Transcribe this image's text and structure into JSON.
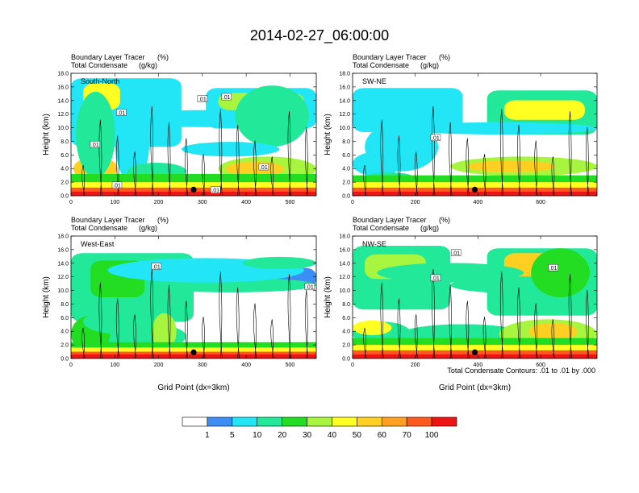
{
  "figure": {
    "title": "2014-02-27_06:00:00",
    "footnote": "Total Condensate Contours: .01 to .01 by .000"
  },
  "chart_data": [
    {
      "type": "heatmap",
      "label": "South-North",
      "subtitle_left_1": "Boundary Layer Tracer",
      "subtitle_unit_1": "(%)",
      "subtitle_left_2": "Total Condensate",
      "subtitle_unit_2": "(g/kg)",
      "xlabel": "",
      "ylabel": "Height (km)",
      "xlim": [
        0,
        560
      ],
      "ylim": [
        0,
        18
      ],
      "xticks": [
        "0",
        "100",
        "200",
        "300",
        "400",
        "500"
      ],
      "xtick_values": [
        0,
        100,
        200,
        300,
        400,
        500
      ],
      "yticks": [
        "0.0",
        "2.0",
        "4.0",
        "6.0",
        "8.0",
        "10.0",
        "12.0",
        "14.0",
        "16.0",
        "18.0"
      ],
      "marker_x": 280,
      "contour_labels": [
        {
          "text": ".01",
          "x": 300,
          "y": 14.2
        },
        {
          "text": ".01",
          "x": 355,
          "y": 14.5
        },
        {
          "text": ".01",
          "x": 115,
          "y": 12.2
        },
        {
          "text": ".01",
          "x": 55,
          "y": 7.5
        },
        {
          "text": ".01",
          "x": 440,
          "y": 4.2
        },
        {
          "text": ".01",
          "x": 105,
          "y": 1.5
        },
        {
          "text": ".01",
          "x": 330,
          "y": 0.8
        }
      ],
      "layers": [
        {
          "top": 0.6,
          "level": 100
        },
        {
          "top": 1.2,
          "level": 70
        },
        {
          "top": 2.0,
          "level": 40
        },
        {
          "top": 3.2,
          "level": 20
        }
      ]
    },
    {
      "type": "heatmap",
      "label": "SW-NE",
      "subtitle_left_1": "Boundary Layer Tracer",
      "subtitle_unit_1": "(%)",
      "subtitle_left_2": "Total Condensate",
      "subtitle_unit_2": "(g/kg)",
      "xlabel": "",
      "ylabel": "Height (km)",
      "xlim": [
        0,
        780
      ],
      "ylim": [
        0,
        18
      ],
      "xticks": [
        "0",
        "200",
        "400",
        "600"
      ],
      "xtick_values": [
        0,
        200,
        400,
        600
      ],
      "yticks": [
        "0.0",
        "2.0",
        "4.0",
        "6.0",
        "8.0",
        "10.0",
        "12.0",
        "14.0",
        "16.0",
        "18.0"
      ],
      "marker_x": 390,
      "contour_labels": [
        {
          "text": ".01",
          "x": 265,
          "y": 8.5
        }
      ],
      "layers": [
        {
          "top": 0.6,
          "level": 100
        },
        {
          "top": 1.2,
          "level": 70
        },
        {
          "top": 2.0,
          "level": 40
        },
        {
          "top": 3.0,
          "level": 20
        }
      ]
    },
    {
      "type": "heatmap",
      "label": "West-East",
      "subtitle_left_1": "Boundary Layer Tracer",
      "subtitle_unit_1": "(%)",
      "subtitle_left_2": "Total Condensate",
      "subtitle_unit_2": "(g/kg)",
      "xlabel": "Grid Point (dx=3km)",
      "ylabel": "Height (km)",
      "xlim": [
        0,
        560
      ],
      "ylim": [
        0,
        18
      ],
      "xticks": [
        "0",
        "100",
        "200",
        "300",
        "400",
        "500"
      ],
      "xtick_values": [
        0,
        100,
        200,
        300,
        400,
        500
      ],
      "yticks": [
        "0.0",
        "2.0",
        "4.0",
        "6.0",
        "8.0",
        "10.0",
        "12.0",
        "14.0",
        "16.0",
        "18.0"
      ],
      "marker_x": 280,
      "contour_labels": [
        {
          "text": ".01",
          "x": 195,
          "y": 13.5
        },
        {
          "text": ".01",
          "x": 545,
          "y": 10.5
        }
      ],
      "layers": [
        {
          "top": 0.6,
          "level": 100
        },
        {
          "top": 1.0,
          "level": 70
        },
        {
          "top": 1.6,
          "level": 40
        },
        {
          "top": 2.4,
          "level": 20
        }
      ]
    },
    {
      "type": "heatmap",
      "label": "NW-SE",
      "subtitle_left_1": "Boundary Layer Tracer",
      "subtitle_unit_1": "(%)",
      "subtitle_left_2": "Total Condensate",
      "subtitle_unit_2": "(g/kg)",
      "xlabel": "Grid Point (dx=3km)",
      "ylabel": "Height (km)",
      "xlim": [
        0,
        780
      ],
      "ylim": [
        0,
        18
      ],
      "xticks": [
        "0",
        "200",
        "400",
        "600"
      ],
      "xtick_values": [
        0,
        200,
        400,
        600
      ],
      "yticks": [
        "0.0",
        "2.0",
        "4.0",
        "6.0",
        "8.0",
        "10.0",
        "12.0",
        "14.0",
        "16.0",
        "18.0"
      ],
      "marker_x": 390,
      "contour_labels": [
        {
          "text": ".01",
          "x": 330,
          "y": 15.5
        },
        {
          "text": ".01",
          "x": 265,
          "y": 11.8
        },
        {
          "text": ".01",
          "x": 640,
          "y": 13.3
        }
      ],
      "layers": [
        {
          "top": 0.6,
          "level": 100
        },
        {
          "top": 1.2,
          "level": 70
        },
        {
          "top": 2.0,
          "level": 40
        },
        {
          "top": 3.0,
          "level": 20
        }
      ]
    }
  ],
  "colorbar": {
    "labels": [
      "1",
      "5",
      "10",
      "20",
      "30",
      "40",
      "50",
      "60",
      "70",
      "100"
    ],
    "colors": [
      "#ffffff",
      "#3c8ef5",
      "#22e6f5",
      "#22e89a",
      "#22dd22",
      "#a8f540",
      "#ffff22",
      "#ffd022",
      "#ffa022",
      "#ff5a1e",
      "#ee1414"
    ]
  }
}
